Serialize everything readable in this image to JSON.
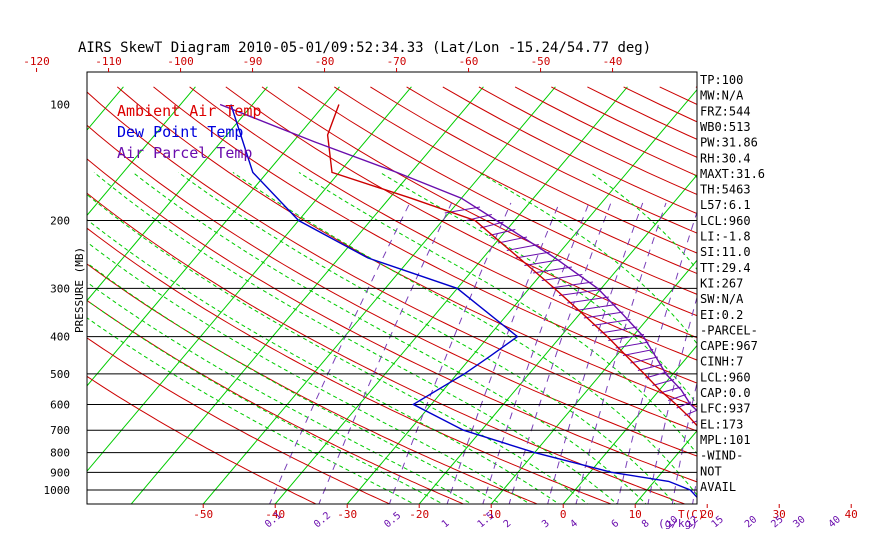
{
  "chart_data": {
    "type": "line",
    "title": "AIRS SkewT Diagram 2010-05-01/09:52:34.33 (Lat/Lon -15.24/54.77 deg)",
    "ylabel": "PRESSURE (MB)",
    "top_x_ticks": [
      "-120",
      "-110",
      "-100",
      "-90",
      "-80",
      "-70",
      "-60",
      "-50",
      "-40"
    ],
    "bottom_x_ticks": [
      "-50",
      "-40",
      "-30",
      "-20",
      "-10",
      "0",
      "10",
      "20",
      "30",
      "40"
    ],
    "bottom_unit": "T(C)",
    "mixing_ratio_labels": [
      "0.1",
      "0.2",
      "0.5",
      "1",
      "1.5",
      "2",
      "3",
      "4",
      "6",
      "8",
      "10",
      "12",
      "15",
      "20",
      "25",
      "30",
      "40"
    ],
    "mixing_ratio_unit": "(g/kg)",
    "pressure_levels": [
      {
        "p": 100,
        "label": "100"
      },
      {
        "p": 200,
        "label": "200"
      },
      {
        "p": 300,
        "label": "300"
      },
      {
        "p": 400,
        "label": "400"
      },
      {
        "p": 500,
        "label": "500"
      },
      {
        "p": 600,
        "label": "600"
      },
      {
        "p": 700,
        "label": "700"
      },
      {
        "p": 800,
        "label": "800"
      },
      {
        "p": 900,
        "label": "900"
      },
      {
        "p": 1000,
        "label": "1000"
      }
    ],
    "legend": {
      "position": "top-left",
      "entries": [
        {
          "label": "Ambient Air Temp",
          "color": "#dd0000"
        },
        {
          "label": "Dew Point Temp",
          "color": "#0000dd"
        },
        {
          "label": "Air Parcel Temp",
          "color": "#6a0dad"
        }
      ]
    },
    "series": [
      {
        "name": "Ambient Air Temp",
        "color": "#cc0000",
        "points": [
          {
            "p": 1050,
            "t": 27.5
          },
          {
            "p": 1000,
            "t": 23.5
          },
          {
            "p": 950,
            "t": 22.0
          },
          {
            "p": 900,
            "t": 21.0
          },
          {
            "p": 850,
            "t": 19.0
          },
          {
            "p": 800,
            "t": 16.0
          },
          {
            "p": 750,
            "t": 13.0
          },
          {
            "p": 700,
            "t": 10.5
          },
          {
            "p": 650,
            "t": 7.5
          },
          {
            "p": 600,
            "t": 4.0
          },
          {
            "p": 550,
            "t": 0.0
          },
          {
            "p": 500,
            "t": -4.0
          },
          {
            "p": 450,
            "t": -8.5
          },
          {
            "p": 400,
            "t": -13.5
          },
          {
            "p": 350,
            "t": -19.5
          },
          {
            "p": 300,
            "t": -26.5
          },
          {
            "p": 250,
            "t": -35.0
          },
          {
            "p": 200,
            "t": -45.5
          },
          {
            "p": 175,
            "t": -57.0
          },
          {
            "p": 150,
            "t": -71.0
          },
          {
            "p": 120,
            "t": -76.0
          },
          {
            "p": 100,
            "t": -78.0
          }
        ]
      },
      {
        "name": "Dew Point Temp",
        "color": "#0000cc",
        "points": [
          {
            "p": 1050,
            "t": 18.0
          },
          {
            "p": 1000,
            "t": 16.0
          },
          {
            "p": 950,
            "t": 12.0
          },
          {
            "p": 900,
            "t": 3.0
          },
          {
            "p": 800,
            "t": -10.0
          },
          {
            "p": 700,
            "t": -22.5
          },
          {
            "p": 600,
            "t": -32.5
          },
          {
            "p": 500,
            "t": -29.0
          },
          {
            "p": 450,
            "t": -27.5
          },
          {
            "p": 400,
            "t": -26.0
          },
          {
            "p": 300,
            "t": -40.0
          },
          {
            "p": 250,
            "t": -56.0
          },
          {
            "p": 200,
            "t": -70.0
          },
          {
            "p": 150,
            "t": -82.0
          },
          {
            "p": 100,
            "t": -93.0
          }
        ]
      },
      {
        "name": "Air Parcel Temp",
        "color": "#6a0dad",
        "points": [
          {
            "p": 1050,
            "t": 27.5
          },
          {
            "p": 1000,
            "t": 23.5
          },
          {
            "p": 950,
            "t": 22.5
          },
          {
            "p": 900,
            "t": 21.5
          },
          {
            "p": 850,
            "t": 19.5
          },
          {
            "p": 800,
            "t": 17.5
          },
          {
            "p": 750,
            "t": 15.0
          },
          {
            "p": 700,
            "t": 12.5
          },
          {
            "p": 650,
            "t": 9.5
          },
          {
            "p": 600,
            "t": 6.0
          },
          {
            "p": 550,
            "t": 3.0
          },
          {
            "p": 500,
            "t": -1.0
          },
          {
            "p": 450,
            "t": -4.5
          },
          {
            "p": 400,
            "t": -8.5
          },
          {
            "p": 350,
            "t": -14.0
          },
          {
            "p": 300,
            "t": -20.5
          },
          {
            "p": 250,
            "t": -30.0
          },
          {
            "p": 200,
            "t": -42.5
          },
          {
            "p": 175,
            "t": -50.0
          },
          {
            "p": 150,
            "t": -62.0
          },
          {
            "p": 125,
            "t": -77.0
          },
          {
            "p": 100,
            "t": -94.5
          }
        ]
      }
    ],
    "indices": [
      "TP:100",
      "MW:N/A",
      "FRZ:544",
      "WB0:513",
      "PW:31.86",
      "RH:30.4",
      "MAXT:31.6",
      "TH:5463",
      "L57:6.1",
      "LCL:960",
      "LI:-1.8",
      "SI:11.0",
      "TT:29.4",
      "KI:267",
      "SW:N/A",
      "EI:0.2",
      "-PARCEL-",
      "CAPE:967",
      "CINH:7",
      "LCL:960",
      "CAP:0.0",
      "LFC:937",
      "EL:173",
      "MPL:101",
      "-WIND-",
      "NOT",
      "AVAIL"
    ],
    "grid": true
  }
}
